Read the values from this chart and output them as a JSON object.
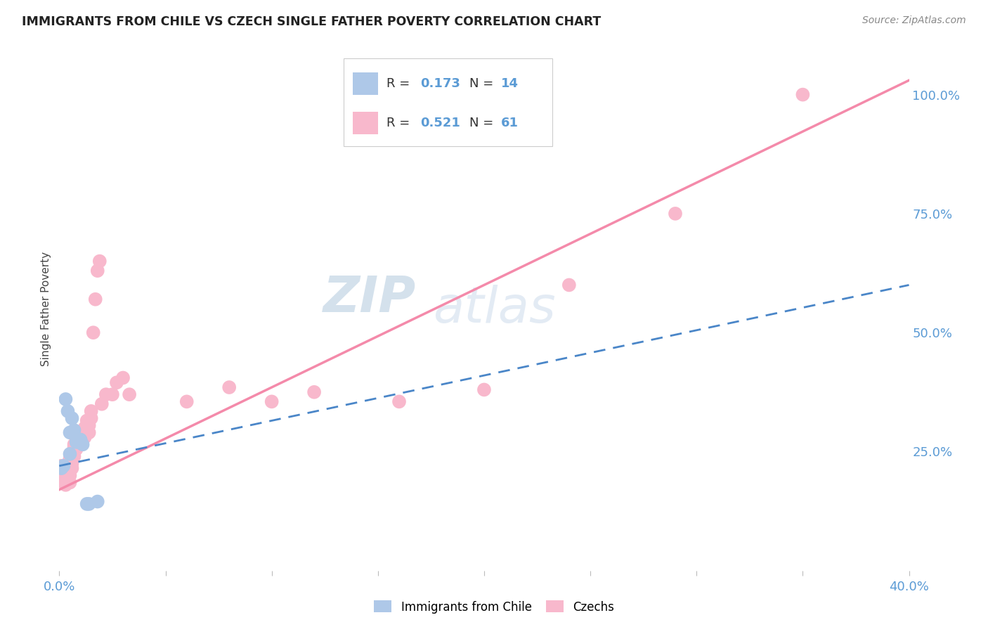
{
  "title": "IMMIGRANTS FROM CHILE VS CZECH SINGLE FATHER POVERTY CORRELATION CHART",
  "source": "Source: ZipAtlas.com",
  "ylabel": "Single Father Poverty",
  "right_yticks": [
    "100.0%",
    "75.0%",
    "50.0%",
    "25.0%"
  ],
  "right_ytick_vals": [
    1.0,
    0.75,
    0.5,
    0.25
  ],
  "xlim": [
    0.0,
    0.4
  ],
  "ylim": [
    0.0,
    1.1
  ],
  "chile_R": 0.173,
  "chile_N": 14,
  "czech_R": 0.521,
  "czech_N": 61,
  "chile_scatter_x": [
    0.001,
    0.002,
    0.003,
    0.004,
    0.005,
    0.005,
    0.006,
    0.007,
    0.008,
    0.01,
    0.011,
    0.013,
    0.014,
    0.018
  ],
  "chile_scatter_y": [
    0.215,
    0.22,
    0.36,
    0.335,
    0.29,
    0.245,
    0.32,
    0.295,
    0.27,
    0.275,
    0.265,
    0.14,
    0.14,
    0.145
  ],
  "czech_scatter_x": [
    0.001,
    0.001,
    0.002,
    0.002,
    0.002,
    0.003,
    0.003,
    0.003,
    0.003,
    0.004,
    0.004,
    0.004,
    0.004,
    0.005,
    0.005,
    0.005,
    0.005,
    0.005,
    0.006,
    0.006,
    0.006,
    0.006,
    0.007,
    0.007,
    0.007,
    0.007,
    0.008,
    0.008,
    0.009,
    0.009,
    0.01,
    0.01,
    0.011,
    0.011,
    0.012,
    0.012,
    0.013,
    0.013,
    0.014,
    0.014,
    0.015,
    0.015,
    0.016,
    0.017,
    0.018,
    0.019,
    0.02,
    0.022,
    0.025,
    0.027,
    0.03,
    0.033,
    0.06,
    0.08,
    0.1,
    0.12,
    0.16,
    0.2,
    0.24,
    0.29,
    0.35
  ],
  "czech_scatter_y": [
    0.19,
    0.22,
    0.2,
    0.185,
    0.215,
    0.18,
    0.185,
    0.195,
    0.21,
    0.2,
    0.21,
    0.215,
    0.225,
    0.185,
    0.2,
    0.215,
    0.225,
    0.235,
    0.215,
    0.225,
    0.235,
    0.24,
    0.24,
    0.255,
    0.26,
    0.265,
    0.255,
    0.27,
    0.27,
    0.275,
    0.27,
    0.275,
    0.275,
    0.285,
    0.28,
    0.3,
    0.3,
    0.315,
    0.29,
    0.305,
    0.32,
    0.335,
    0.5,
    0.57,
    0.63,
    0.65,
    0.35,
    0.37,
    0.37,
    0.395,
    0.405,
    0.37,
    0.355,
    0.385,
    0.355,
    0.375,
    0.355,
    0.38,
    0.6,
    0.75,
    1.0
  ],
  "chile_line_color": "#4a86c8",
  "chile_line_style": "--",
  "czech_line_color": "#f48aaa",
  "czech_line_style": "-",
  "chile_scatter_color": "#aec8e8",
  "czech_scatter_color": "#f8b8cc",
  "watermark_zip": "ZIP",
  "watermark_atlas": "atlas",
  "background_color": "#ffffff",
  "grid_color": "#e0e0e0"
}
